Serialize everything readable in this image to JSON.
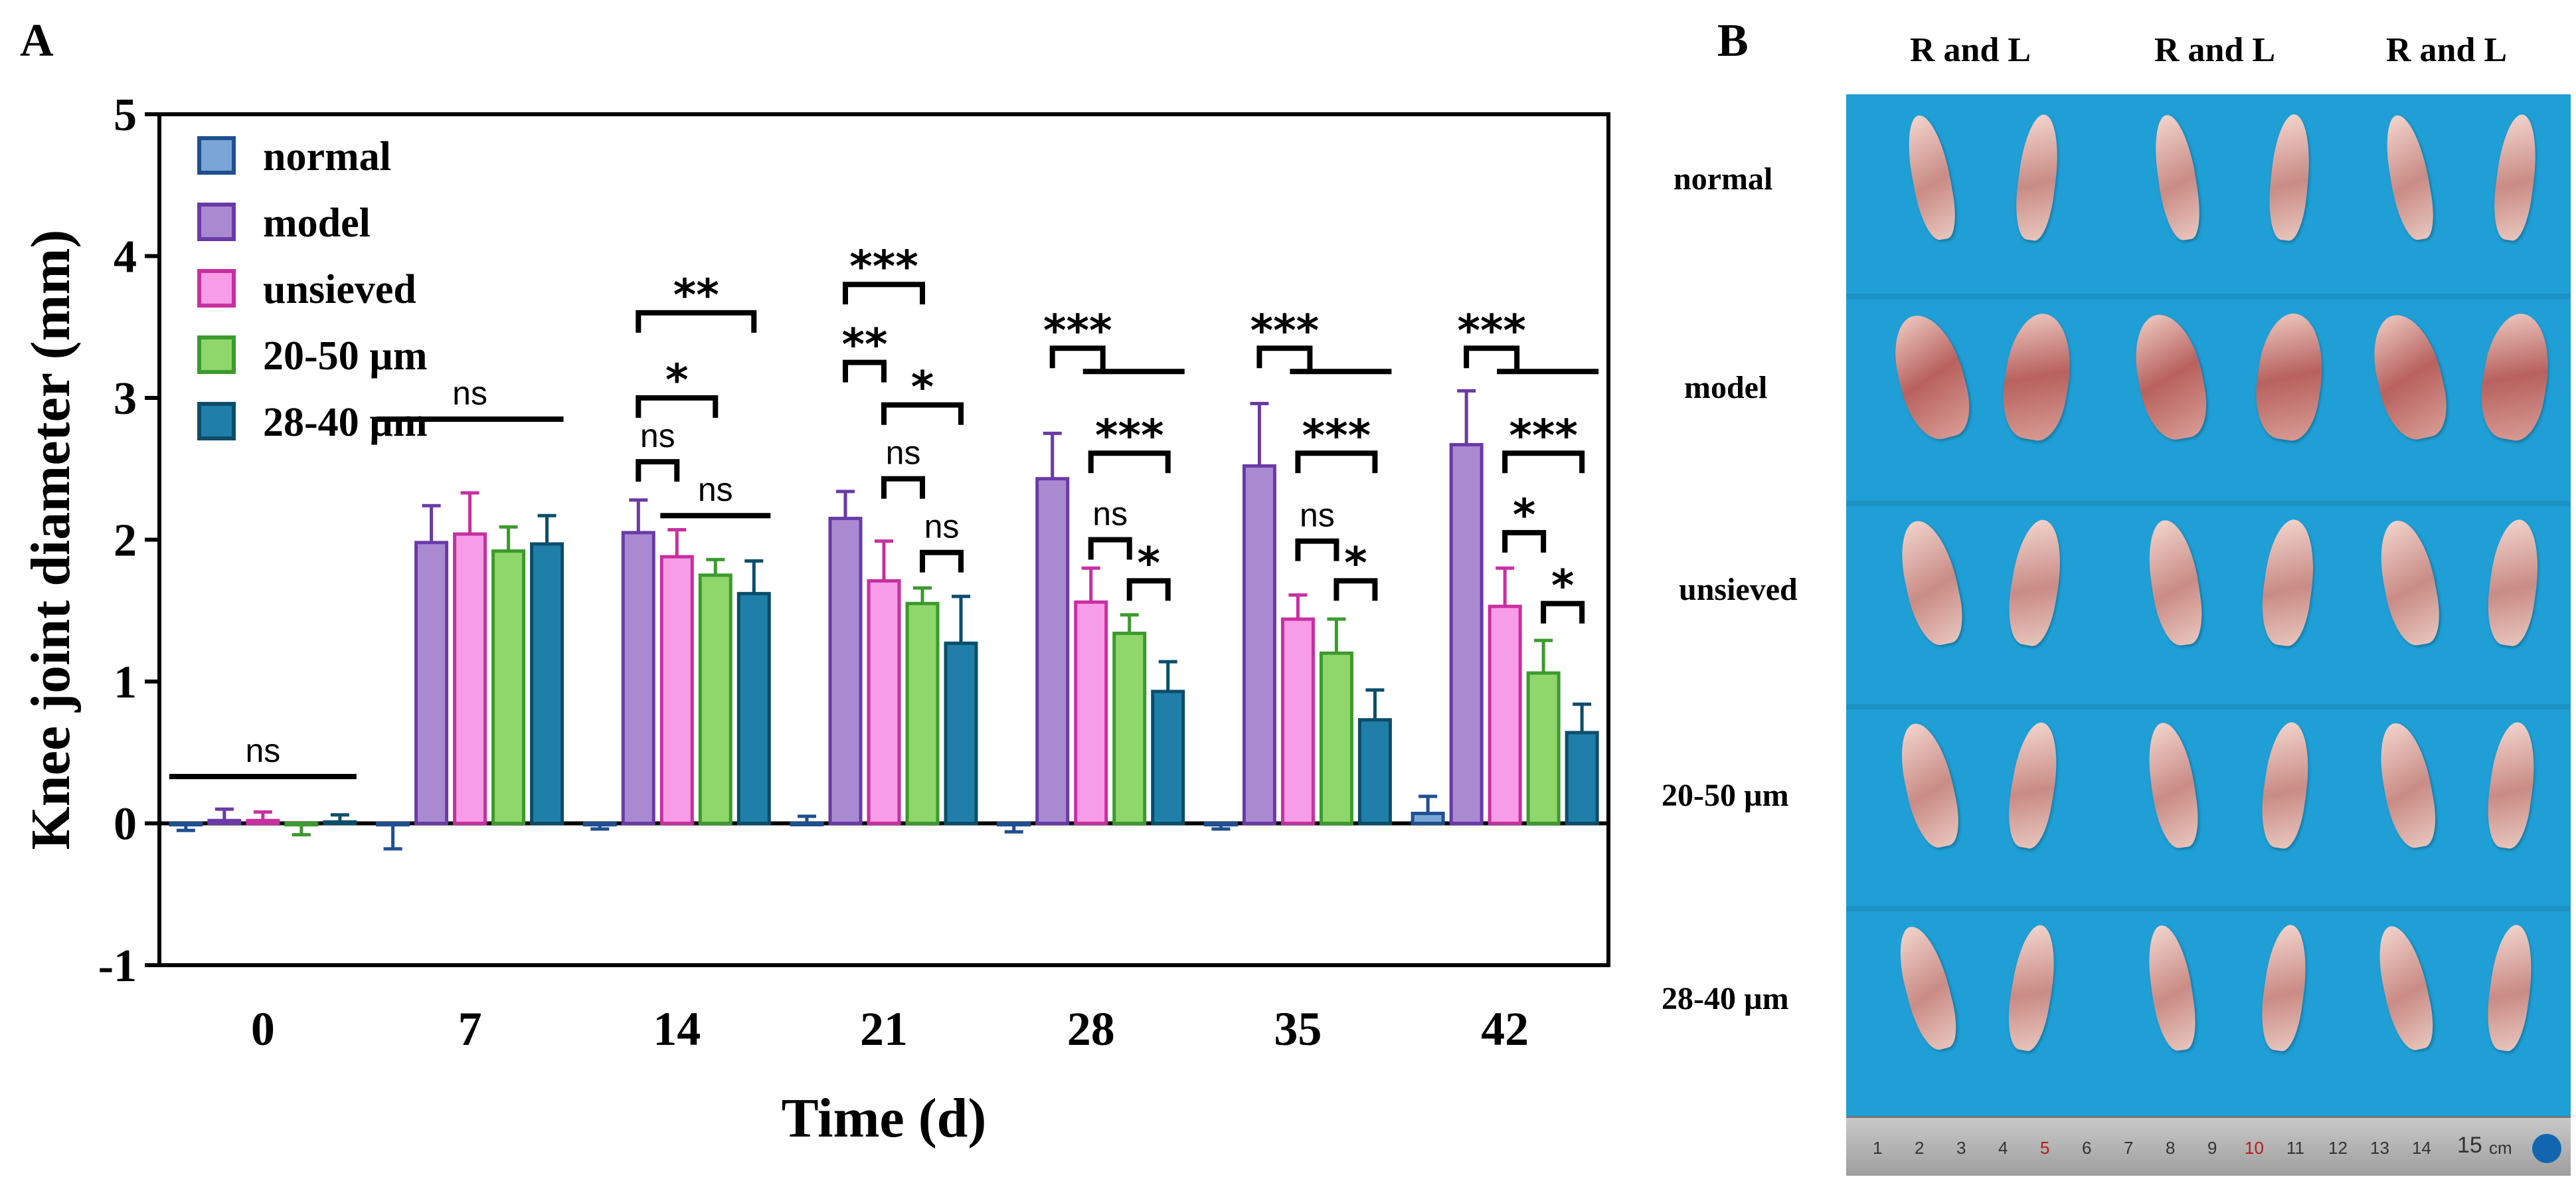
{
  "panel_a": {
    "letter": "A",
    "chart_data": {
      "type": "bar",
      "xlabel": "Time (d)",
      "ylabel": "Knee joint diameter (mm)",
      "ylim": [
        -1,
        5
      ],
      "yticks": [
        "-1",
        "0",
        "1",
        "2",
        "3",
        "4",
        "5"
      ],
      "categories": [
        "0",
        "7",
        "14",
        "21",
        "28",
        "35",
        "42"
      ],
      "legend_position": "top-left",
      "series": [
        {
          "name": "normal",
          "fill": "#7aa6d6",
          "stroke": "#1f4f8f",
          "values": [
            -0.01,
            -0.01,
            -0.01,
            0.0,
            -0.01,
            -0.01,
            0.07
          ],
          "errors": [
            0.04,
            0.17,
            0.03,
            0.05,
            0.05,
            0.03,
            0.12
          ]
        },
        {
          "name": "model",
          "fill": "#a98ad1",
          "stroke": "#6a3aa6",
          "values": [
            0.02,
            1.98,
            2.05,
            2.15,
            2.43,
            2.52,
            2.67
          ],
          "errors": [
            0.08,
            0.26,
            0.23,
            0.19,
            0.32,
            0.44,
            0.38
          ]
        },
        {
          "name": "unsieved",
          "fill": "#f79ce6",
          "stroke": "#c82fa0",
          "values": [
            0.02,
            2.04,
            1.88,
            1.71,
            1.56,
            1.44,
            1.53
          ],
          "errors": [
            0.06,
            0.29,
            0.19,
            0.28,
            0.24,
            0.17,
            0.27
          ]
        },
        {
          "name": "20-50 µm",
          "fill": "#8fd66b",
          "stroke": "#3c9a2e",
          "values": [
            -0.01,
            1.92,
            1.75,
            1.55,
            1.34,
            1.2,
            1.06
          ],
          "errors": [
            0.07,
            0.17,
            0.11,
            0.11,
            0.13,
            0.24,
            0.23
          ]
        },
        {
          "name": "28-40 µm",
          "fill": "#1f7fa8",
          "stroke": "#0b4d6b",
          "values": [
            0.01,
            1.97,
            1.62,
            1.27,
            0.93,
            0.73,
            0.64
          ],
          "errors": [
            0.05,
            0.2,
            0.23,
            0.33,
            0.21,
            0.21,
            0.2
          ]
        }
      ],
      "annotations": [
        {
          "group": 0,
          "label": "ns",
          "kind": "line",
          "from": 0,
          "to": 4,
          "y": 0.33
        },
        {
          "group": 1,
          "label": "ns",
          "kind": "line",
          "from": 0,
          "to": 4,
          "y": 2.85
        },
        {
          "group": 2,
          "label": "**",
          "kind": "bracket",
          "from": 1,
          "to": 4,
          "y": 3.6
        },
        {
          "group": 2,
          "label": "*",
          "kind": "bracket",
          "from": 1,
          "to": 3,
          "y": 3.0
        },
        {
          "group": 2,
          "label": "ns",
          "kind": "bracket",
          "from": 1,
          "to": 2,
          "y": 2.55
        },
        {
          "group": 2,
          "label": "ns",
          "kind": "line",
          "from": 2,
          "to": 4,
          "y": 2.17
        },
        {
          "group": 3,
          "label": "***",
          "kind": "bracket",
          "from": 1,
          "to": 3,
          "y": 3.8
        },
        {
          "group": 3,
          "label": "**",
          "kind": "bracket",
          "from": 1,
          "to": 2,
          "y": 3.25
        },
        {
          "group": 3,
          "label": "*",
          "kind": "bracket",
          "from": 2,
          "to": 4,
          "y": 2.95
        },
        {
          "group": 3,
          "label": "ns",
          "kind": "bracket",
          "from": 2,
          "to": 3,
          "y": 2.43
        },
        {
          "group": 3,
          "label": "ns",
          "kind": "bracket",
          "from": 3,
          "to": 4,
          "y": 1.91
        },
        {
          "group": 4,
          "label": "***",
          "kind": "split",
          "from": 1,
          "to": 4,
          "y": 3.35
        },
        {
          "group": 4,
          "label": "***",
          "kind": "bracket",
          "from": 2,
          "to": 4,
          "y": 2.61
        },
        {
          "group": 4,
          "label": "ns",
          "kind": "bracket",
          "from": 2,
          "to": 3,
          "y": 2.0
        },
        {
          "group": 4,
          "label": "*",
          "kind": "bracket",
          "from": 3,
          "to": 4,
          "y": 1.71
        },
        {
          "group": 5,
          "label": "***",
          "kind": "split",
          "from": 1,
          "to": 4,
          "y": 3.35
        },
        {
          "group": 5,
          "label": "***",
          "kind": "bracket",
          "from": 2,
          "to": 4,
          "y": 2.61
        },
        {
          "group": 5,
          "label": "ns",
          "kind": "bracket",
          "from": 2,
          "to": 3,
          "y": 1.99
        },
        {
          "group": 5,
          "label": "*",
          "kind": "bracket",
          "from": 3,
          "to": 4,
          "y": 1.71
        },
        {
          "group": 6,
          "label": "***",
          "kind": "split",
          "from": 1,
          "to": 4,
          "y": 3.35
        },
        {
          "group": 6,
          "label": "***",
          "kind": "bracket",
          "from": 2,
          "to": 4,
          "y": 2.61
        },
        {
          "group": 6,
          "label": "*",
          "kind": "bracket",
          "from": 2,
          "to": 3,
          "y": 2.05
        },
        {
          "group": 6,
          "label": "*",
          "kind": "bracket",
          "from": 3,
          "to": 4,
          "y": 1.55
        }
      ]
    }
  },
  "panel_b": {
    "letter": "B",
    "column_headers": [
      "R and L",
      "R and L",
      "R and L"
    ],
    "row_labels": [
      "normal",
      "model",
      "unsieved",
      "20-50 µm",
      "28-40 µm"
    ],
    "ruler": {
      "numbers": [
        "1",
        "2",
        "3",
        "4",
        "5",
        "6",
        "7",
        "8",
        "9",
        "10",
        "11",
        "12",
        "13",
        "14",
        "15"
      ],
      "unit": "cm"
    }
  }
}
